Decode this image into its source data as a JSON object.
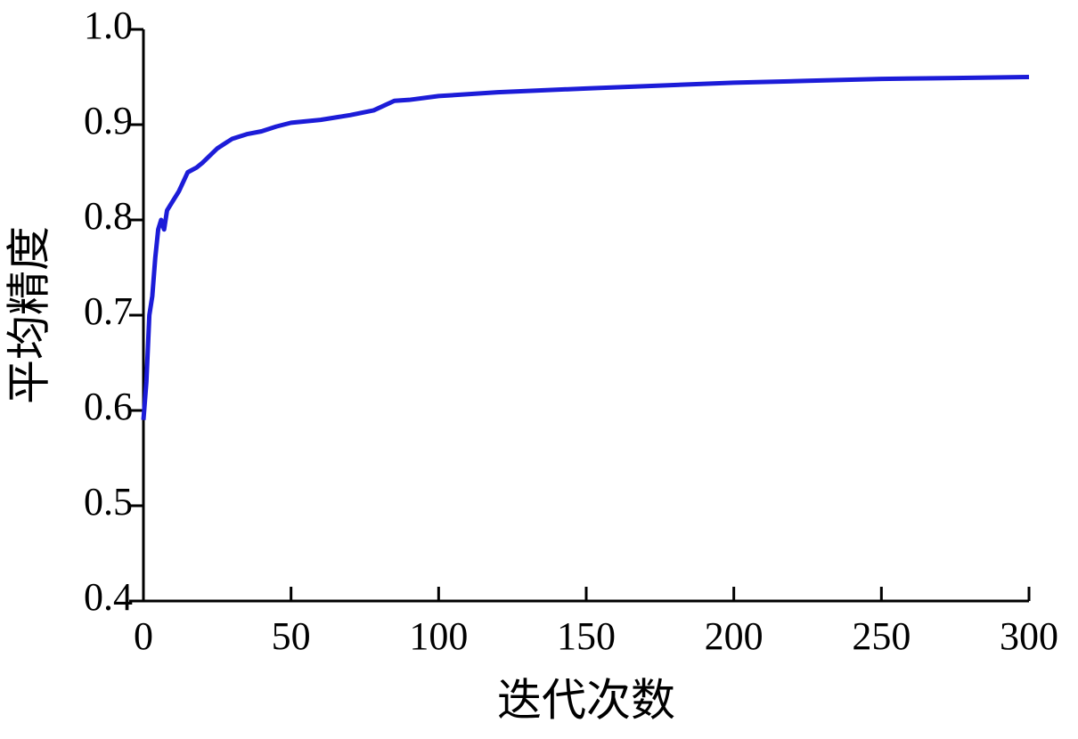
{
  "chart_data": {
    "type": "line",
    "x_label": "迭代次数",
    "y_label": "平均精度",
    "x": [
      0,
      1,
      2,
      3,
      4,
      5,
      6,
      7,
      8,
      10,
      12,
      15,
      18,
      20,
      25,
      30,
      35,
      40,
      45,
      50,
      60,
      70,
      78,
      85,
      90,
      100,
      120,
      150,
      175,
      200,
      225,
      250,
      275,
      300
    ],
    "series": [
      {
        "color": "#1c1cd8",
        "values": [
          0.59,
          0.63,
          0.7,
          0.72,
          0.76,
          0.79,
          0.8,
          0.79,
          0.81,
          0.82,
          0.83,
          0.85,
          0.855,
          0.86,
          0.875,
          0.885,
          0.89,
          0.893,
          0.898,
          0.902,
          0.905,
          0.91,
          0.915,
          0.925,
          0.926,
          0.93,
          0.934,
          0.938,
          0.941,
          0.944,
          0.946,
          0.948,
          0.949,
          0.95
        ]
      }
    ],
    "xlim": [
      0,
      300
    ],
    "xticks": [
      0,
      50,
      100,
      150,
      200,
      250,
      300
    ],
    "ylim": [
      0.4,
      1.0
    ],
    "yticks": [
      0.4,
      0.5,
      0.6,
      0.7,
      0.8,
      0.9,
      {
        "value": 1.0,
        "label": "1.0"
      }
    ],
    "grid": false
  }
}
